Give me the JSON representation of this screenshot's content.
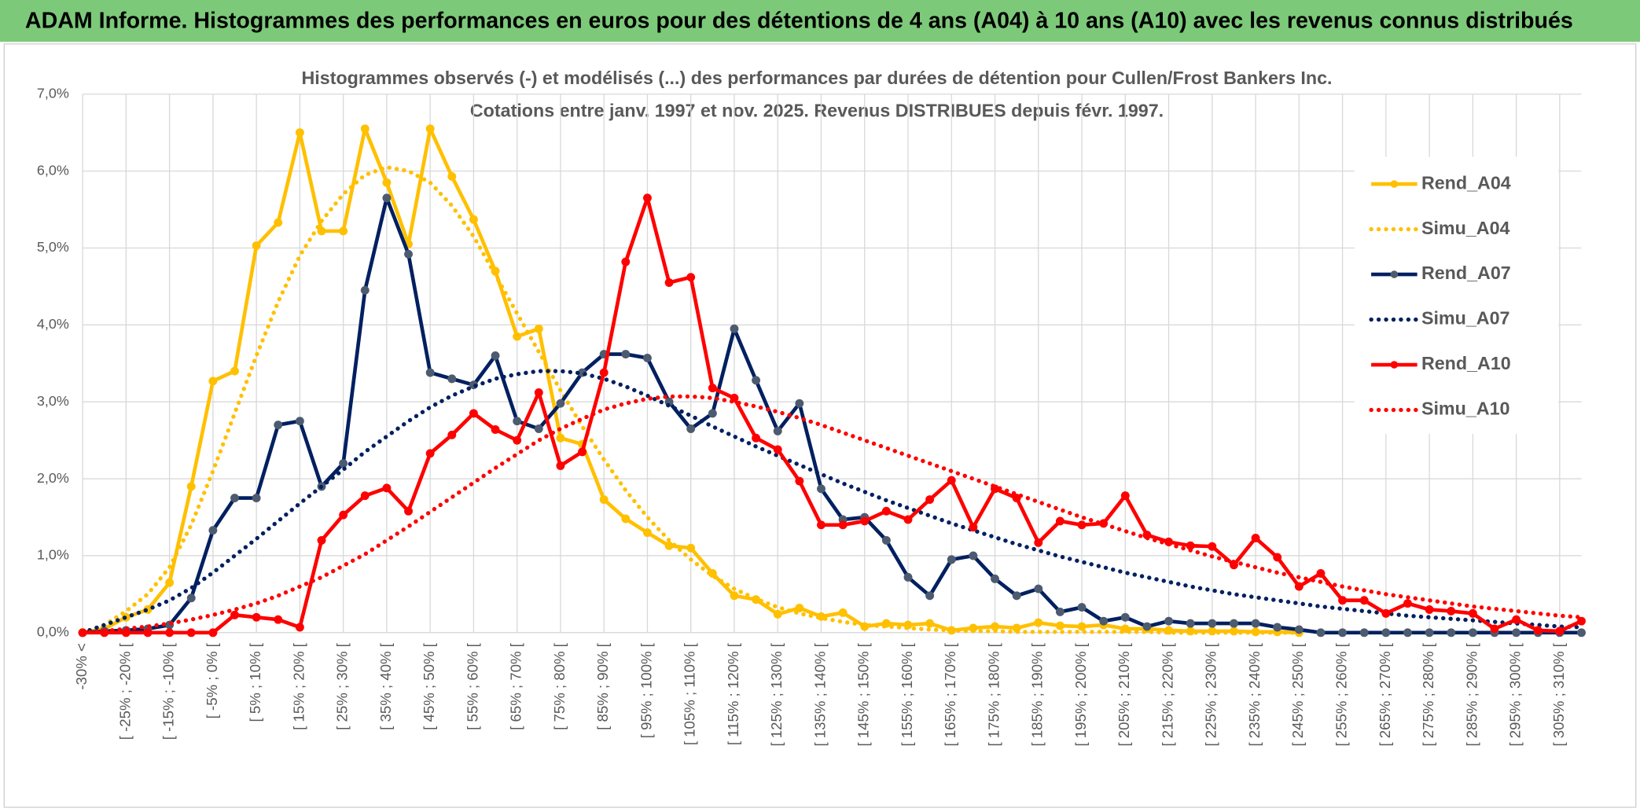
{
  "chart_data": {
    "type": "line",
    "header": "ADAM Informe. Histogrammes des performances en euros pour des détentions de 4 ans (A04) à 10 ans (A10) avec les revenus connus distribués",
    "title": "Histogrammes observés (-) et modélisés (...) des performances par durées de détention pour Cullen/Frost Bankers Inc.",
    "subtitle": "Cotations entre janv. 1997 et nov. 2025. Revenus DISTRIBUES depuis févr. 1997.",
    "categories": [
      "-30% <",
      null,
      "[ -25% ; -20% [",
      null,
      "[ -15% ; -10% [",
      null,
      "[ -5% ; 0% [",
      null,
      "[ 5% ; 10% [",
      null,
      "[ 15% ; 20% [",
      null,
      "[ 25% ; 30% [",
      null,
      "[ 35% ; 40% [",
      null,
      "[ 45% ; 50% [",
      null,
      "[ 55% ; 60% [",
      null,
      "[ 65% ; 70% [",
      null,
      "[ 75% ; 80% [",
      null,
      "[ 85% ; 90% [",
      null,
      "[ 95% ; 100% [",
      null,
      "[ 105% ; 110% [",
      null,
      "[ 115% ; 120% [",
      null,
      "[ 125% ; 130% [",
      null,
      "[ 135% ; 140% [",
      null,
      "[ 145% ; 150% [",
      null,
      "[ 155% ; 160% [",
      null,
      "[ 165% ; 170% [",
      null,
      "[ 175% ; 180% [",
      null,
      "[ 185% ; 190% [",
      null,
      "[ 195% ; 200% [",
      null,
      "[ 205% ; 210% [",
      null,
      "[ 215% ; 220% [",
      null,
      "[ 225% ; 230% [",
      null,
      "[ 235% ; 240% [",
      null,
      "[ 245% ; 250% [",
      null,
      "[ 255% ; 260% [",
      null,
      "[ 265% ; 270% [",
      null,
      "[ 275% ; 280% [",
      null,
      "[ 285% ; 290% [",
      null,
      "[ 295% ; 300% [",
      null,
      "[ 305% ; 310% [",
      null
    ],
    "ylim": [
      0,
      7
    ],
    "yticks": [
      {
        "value": 0,
        "label": "0,0%"
      },
      {
        "value": 1,
        "label": "1,0%"
      },
      {
        "value": 2,
        "label": "2,0%"
      },
      {
        "value": 3,
        "label": "3,0%"
      },
      {
        "value": 4,
        "label": "4,0%"
      },
      {
        "value": 5,
        "label": "5,0%"
      },
      {
        "value": 6,
        "label": "6,0%"
      },
      {
        "value": 7,
        "label": "7,0%"
      }
    ],
    "grid": true,
    "legend": "right",
    "series": [
      {
        "name": "Rend_A04",
        "color": "#ffc000",
        "style": "solid",
        "markers": true,
        "marker_color": "#ffc000",
        "values": [
          0,
          0.05,
          0.2,
          0.3,
          0.65,
          1.9,
          3.27,
          3.4,
          5.03,
          5.33,
          6.5,
          5.22,
          5.22,
          6.55,
          5.85,
          5.05,
          6.55,
          5.93,
          5.37,
          4.7,
          3.85,
          3.95,
          2.53,
          2.45,
          1.73,
          1.48,
          1.3,
          1.13,
          1.1,
          0.77,
          0.48,
          0.43,
          0.24,
          0.32,
          0.21,
          0.26,
          0.08,
          0.12,
          0.1,
          0.12,
          0.03,
          0.06,
          0.08,
          0.06,
          0.13,
          0.09,
          0.08,
          0.1,
          0.05,
          0.05,
          0.03,
          0.02,
          0.02,
          0.02,
          0.01,
          0.01,
          0,
          null,
          null,
          null,
          null,
          null,
          null,
          null,
          null,
          null,
          null,
          null,
          null,
          null
        ]
      },
      {
        "name": "Simu_A04",
        "color": "#ffc000",
        "style": "dotted",
        "markers": false,
        "values": [
          0,
          0.1,
          0.28,
          0.5,
          0.85,
          1.4,
          2.1,
          2.85,
          3.6,
          4.3,
          4.9,
          5.35,
          5.7,
          5.95,
          6.05,
          6,
          5.85,
          5.55,
          5.15,
          4.65,
          4.15,
          3.65,
          3.15,
          2.68,
          2.25,
          1.85,
          1.5,
          1.2,
          0.95,
          0.74,
          0.57,
          0.44,
          0.33,
          0.25,
          0.19,
          0.14,
          0.1,
          0.08,
          0.06,
          0.04,
          0.03,
          0.02,
          0.02,
          0.01,
          0.01,
          0.01,
          0.01,
          0.01,
          0.01,
          0.01,
          0,
          0,
          0,
          0,
          0,
          0,
          0,
          null,
          null,
          null,
          null,
          null,
          null,
          null,
          null,
          null,
          null,
          null,
          null,
          null
        ]
      },
      {
        "name": "Rend_A07",
        "color": "#002060",
        "style": "solid",
        "markers": true,
        "marker_color": "#4d5b70",
        "values": [
          0,
          0.02,
          0.03,
          0.05,
          0.1,
          0.45,
          1.33,
          1.75,
          1.75,
          2.7,
          2.75,
          1.9,
          2.2,
          4.45,
          5.65,
          4.92,
          3.38,
          3.3,
          3.22,
          3.6,
          2.75,
          2.65,
          2.98,
          3.38,
          3.62,
          3.62,
          3.57,
          3,
          2.65,
          2.85,
          3.95,
          3.28,
          2.62,
          2.98,
          1.87,
          1.47,
          1.5,
          1.2,
          0.72,
          0.48,
          0.95,
          1,
          0.7,
          0.48,
          0.57,
          0.27,
          0.33,
          0.15,
          0.2,
          0.08,
          0.15,
          0.12,
          0.12,
          0.12,
          0.12,
          0.07,
          0.04,
          0,
          0,
          0,
          0,
          0,
          0,
          0,
          0,
          0,
          0,
          0,
          0,
          0
        ]
      },
      {
        "name": "Simu_A07",
        "color": "#002060",
        "style": "dotted",
        "markers": false,
        "values": [
          0,
          0.1,
          0.2,
          0.3,
          0.42,
          0.58,
          0.78,
          1,
          1.22,
          1.45,
          1.68,
          1.9,
          2.12,
          2.35,
          2.55,
          2.75,
          2.93,
          3.08,
          3.2,
          3.3,
          3.36,
          3.4,
          3.4,
          3.37,
          3.3,
          3.2,
          3.08,
          2.95,
          2.82,
          2.68,
          2.55,
          2.42,
          2.3,
          2.18,
          2.06,
          1.94,
          1.83,
          1.72,
          1.62,
          1.52,
          1.42,
          1.33,
          1.24,
          1.15,
          1.07,
          0.99,
          0.92,
          0.85,
          0.78,
          0.72,
          0.66,
          0.6,
          0.55,
          0.5,
          0.46,
          0.42,
          0.38,
          0.34,
          0.31,
          0.28,
          0.25,
          0.22,
          0.2,
          0.18,
          0.16,
          0.14,
          0.12,
          0.1,
          0.08,
          0.07
        ]
      },
      {
        "name": "Rend_A10",
        "color": "#ff0000",
        "style": "solid",
        "markers": true,
        "marker_color": "#ff0000",
        "values": [
          0,
          0,
          0,
          0,
          0,
          0,
          0,
          0.23,
          0.2,
          0.17,
          0.07,
          1.2,
          1.53,
          1.78,
          1.88,
          1.58,
          2.33,
          2.57,
          2.85,
          2.64,
          2.5,
          3.12,
          2.17,
          2.35,
          3.38,
          4.82,
          5.65,
          4.55,
          4.62,
          3.18,
          3.05,
          2.53,
          2.38,
          1.97,
          1.4,
          1.4,
          1.45,
          1.58,
          1.47,
          1.73,
          1.98,
          1.37,
          1.87,
          1.75,
          1.17,
          1.45,
          1.4,
          1.42,
          1.78,
          1.27,
          1.18,
          1.13,
          1.12,
          0.88,
          1.23,
          0.98,
          0.6,
          0.77,
          0.42,
          0.42,
          0.25,
          0.38,
          0.3,
          0.28,
          0.25,
          0.05,
          0.17,
          0.03,
          0.02,
          0.15
        ]
      },
      {
        "name": "Simu_A10",
        "color": "#ff0000",
        "style": "dotted",
        "markers": false,
        "values": [
          0,
          0.02,
          0.05,
          0.08,
          0.12,
          0.17,
          0.23,
          0.3,
          0.38,
          0.48,
          0.6,
          0.72,
          0.87,
          1.02,
          1.2,
          1.38,
          1.57,
          1.76,
          1.95,
          2.14,
          2.32,
          2.5,
          2.65,
          2.78,
          2.9,
          2.98,
          3.04,
          3.07,
          3.07,
          3.05,
          3,
          2.94,
          2.87,
          2.79,
          2.7,
          2.6,
          2.5,
          2.4,
          2.3,
          2.2,
          2.1,
          2,
          1.9,
          1.8,
          1.7,
          1.6,
          1.5,
          1.41,
          1.32,
          1.23,
          1.15,
          1.07,
          0.99,
          0.92,
          0.85,
          0.78,
          0.72,
          0.66,
          0.6,
          0.55,
          0.5,
          0.46,
          0.42,
          0.38,
          0.34,
          0.31,
          0.28,
          0.25,
          0.22,
          0.2
        ]
      }
    ]
  }
}
